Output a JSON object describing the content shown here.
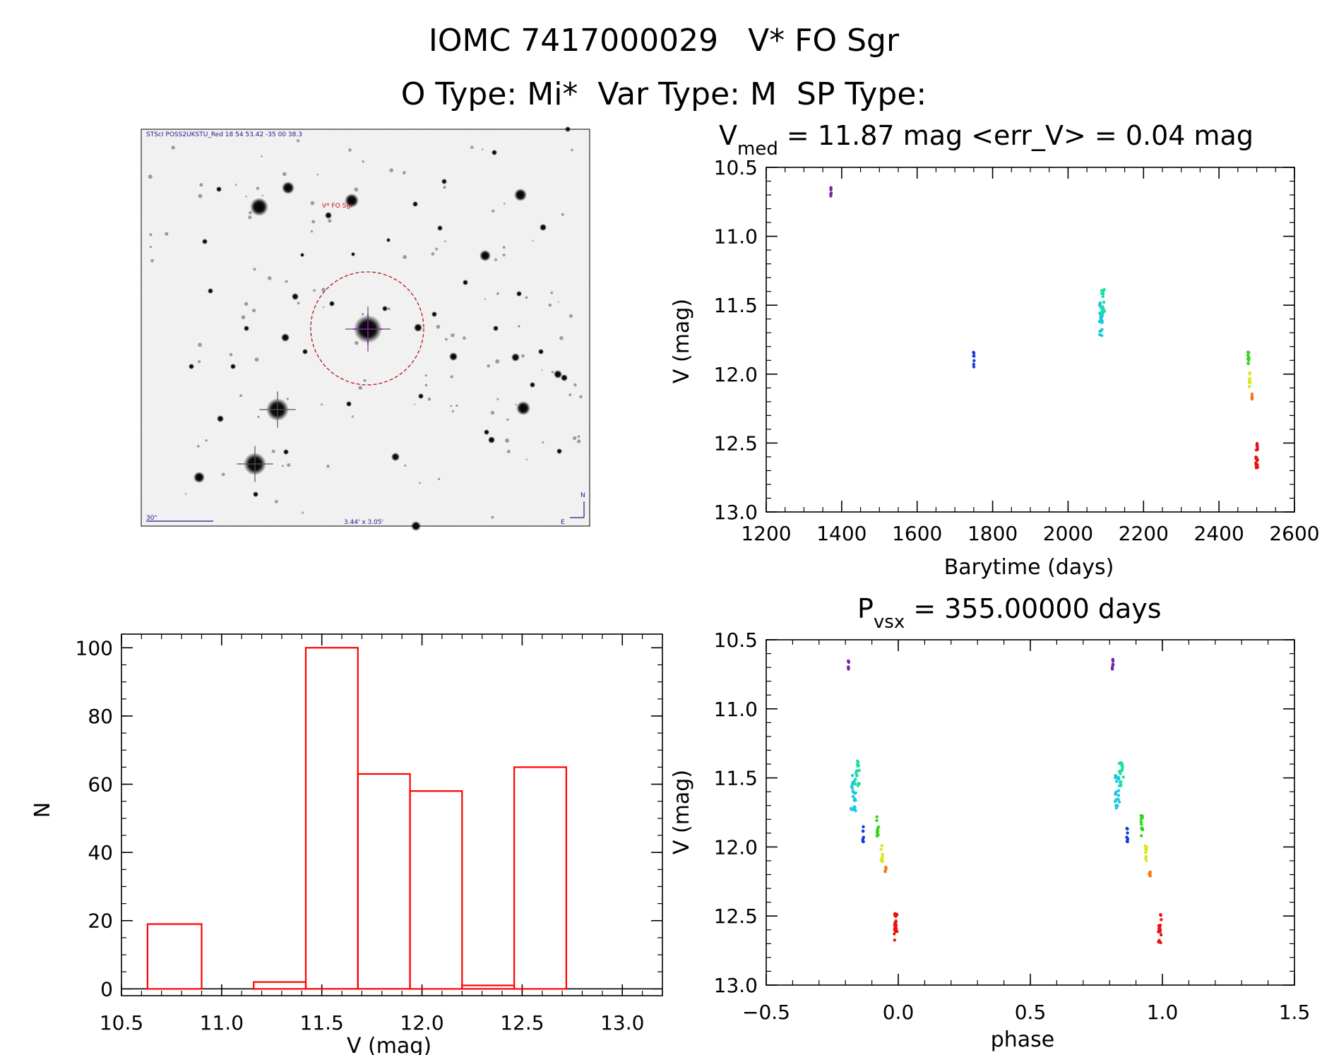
{
  "header": {
    "title": "IOMC 7417000029   V* FO Sgr",
    "subtitle": "O Type: Mi*  Var Type: M  SP Type:"
  },
  "finder": {
    "caption_top": "STScI POSS2UKSTU_Red 18 54 53.42 -35 00 38.3",
    "target_label": "V* FO Sgr",
    "scale_label": "30\"",
    "field_label": "3.44' x 3.05'",
    "north_label": "N",
    "east_label": "E"
  },
  "colors": {
    "hist": "#ff0000",
    "purple": "#7a1fa2",
    "blue": "#1a3ad8",
    "cyan": "#18c8e0",
    "teal": "#18e0a0",
    "green": "#30d818",
    "yellow": "#d8e818",
    "orange": "#f07818",
    "red": "#ee1010"
  },
  "chart_data": [
    {
      "id": "lightcurve",
      "type": "scatter",
      "title_main": "V",
      "title_sub": "med",
      "title_rest": " = 11.87 mag <err_V> = 0.04 mag",
      "xlabel": "Barytime (days)",
      "ylabel": "V (mag)",
      "xlim": [
        1200,
        2600
      ],
      "ylim": [
        10.5,
        13.0
      ],
      "y_inverted": true,
      "xticks": [
        "1200",
        "1400",
        "1600",
        "1800",
        "2000",
        "2200",
        "2400",
        "2600"
      ],
      "yticks": [
        "10.5",
        "11.0",
        "11.5",
        "12.0",
        "12.5",
        "13.0"
      ],
      "groups": [
        {
          "color": "purple",
          "x": 1372,
          "x_spread": 2,
          "y_min": 10.64,
          "y_max": 10.72,
          "n": 6
        },
        {
          "color": "blue",
          "x": 1750,
          "x_spread": 2,
          "y_min": 11.84,
          "y_max": 11.97,
          "n": 8
        },
        {
          "color": "cyan",
          "x": 2087,
          "x_spread": 8,
          "y_min": 11.48,
          "y_max": 11.74,
          "n": 22
        },
        {
          "color": "teal",
          "x": 2093,
          "x_spread": 8,
          "y_min": 11.36,
          "y_max": 11.56,
          "n": 16
        },
        {
          "color": "green",
          "x": 2478,
          "x_spread": 3,
          "y_min": 11.77,
          "y_max": 11.93,
          "n": 12
        },
        {
          "color": "yellow",
          "x": 2482,
          "x_spread": 3,
          "y_min": 11.99,
          "y_max": 12.11,
          "n": 9
        },
        {
          "color": "orange",
          "x": 2487,
          "x_spread": 2,
          "y_min": 12.14,
          "y_max": 12.21,
          "n": 5
        },
        {
          "color": "red",
          "x": 2500,
          "x_spread": 5,
          "y_min": 12.48,
          "y_max": 12.7,
          "n": 20
        }
      ]
    },
    {
      "id": "histogram",
      "type": "bar",
      "xlabel": "V (mag)",
      "ylabel": "N",
      "xlim": [
        10.5,
        13.2
      ],
      "ylim": [
        -2,
        104
      ],
      "xticks": [
        "10.5",
        "11.0",
        "11.5",
        "12.0",
        "12.5",
        "13.0"
      ],
      "yticks": [
        "0",
        "20",
        "40",
        "60",
        "80",
        "100"
      ],
      "bin_edges": [
        10.63,
        10.9,
        11.16,
        11.42,
        11.68,
        11.94,
        12.2,
        12.46,
        12.72
      ],
      "counts": [
        19,
        0,
        2,
        100,
        63,
        58,
        1,
        65
      ]
    },
    {
      "id": "phased",
      "type": "scatter",
      "title_main": "P",
      "title_sub": "vsx",
      "title_rest": " = 355.00000 days",
      "xlabel": "phase",
      "ylabel": "V (mag)",
      "xlim": [
        -0.5,
        1.5
      ],
      "ylim": [
        10.5,
        13.0
      ],
      "y_inverted": true,
      "xticks": [
        "−0.5",
        "0.0",
        "0.5",
        "1.0",
        "1.5"
      ],
      "yticks": [
        "10.5",
        "11.0",
        "11.5",
        "12.0",
        "12.5",
        "13.0"
      ],
      "repeat_offset": 1.0,
      "groups": [
        {
          "color": "purple",
          "x": -0.188,
          "x_spread": 0.004,
          "y_min": 10.64,
          "y_max": 10.72,
          "n": 6
        },
        {
          "color": "cyan",
          "x": -0.17,
          "x_spread": 0.018,
          "y_min": 11.48,
          "y_max": 11.74,
          "n": 22
        },
        {
          "color": "teal",
          "x": -0.155,
          "x_spread": 0.018,
          "y_min": 11.36,
          "y_max": 11.56,
          "n": 16
        },
        {
          "color": "blue",
          "x": -0.133,
          "x_spread": 0.004,
          "y_min": 11.84,
          "y_max": 11.97,
          "n": 8
        },
        {
          "color": "green",
          "x": -0.078,
          "x_spread": 0.008,
          "y_min": 11.77,
          "y_max": 11.93,
          "n": 12
        },
        {
          "color": "yellow",
          "x": -0.062,
          "x_spread": 0.006,
          "y_min": 11.99,
          "y_max": 12.11,
          "n": 9
        },
        {
          "color": "orange",
          "x": -0.048,
          "x_spread": 0.004,
          "y_min": 12.14,
          "y_max": 12.21,
          "n": 5
        },
        {
          "color": "red",
          "x": -0.01,
          "x_spread": 0.012,
          "y_min": 12.48,
          "y_max": 12.7,
          "n": 20
        }
      ]
    }
  ]
}
